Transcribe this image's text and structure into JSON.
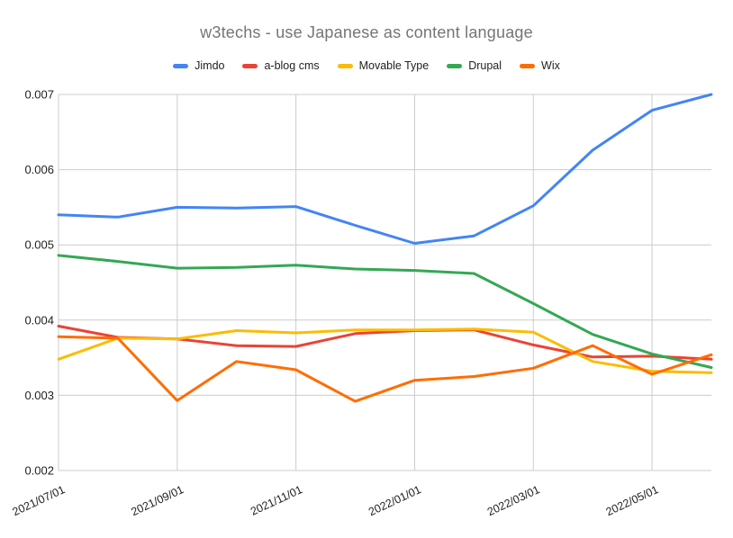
{
  "page": {
    "background": "#ffffff"
  },
  "chart_data": {
    "type": "line",
    "title": "w3techs - use Japanese as content language",
    "title_color": "#757575",
    "xlabel": "",
    "ylabel": "",
    "x": [
      "2021/07/01",
      "2021/08/01",
      "2021/09/01",
      "2021/10/01",
      "2021/11/01",
      "2021/12/01",
      "2022/01/01",
      "2022/02/01",
      "2022/03/01",
      "2022/04/01",
      "2022/05/01",
      "2022/06/01"
    ],
    "x_tick_labels": [
      "2021/07/01",
      "2021/09/01",
      "2021/11/01",
      "2022/01/01",
      "2022/03/01",
      "2022/05/01"
    ],
    "y_ticks": [
      0.002,
      0.003,
      0.004,
      0.005,
      0.006,
      0.007
    ],
    "y_tick_labels": [
      "0.002",
      "0.003",
      "0.004",
      "0.005",
      "0.006",
      "0.007"
    ],
    "ylim": [
      0.002,
      0.007
    ],
    "grid": true,
    "legend_position": "top",
    "gridline_color": "#cccccc",
    "axis_label_color": "#1f1f1f",
    "series": [
      {
        "name": "Jimdo",
        "color": "#4285F4",
        "values": [
          0.0054,
          0.00537,
          0.0055,
          0.00549,
          0.00551,
          0.00526,
          0.00502,
          0.00512,
          0.00552,
          0.00626,
          0.00679,
          0.007
        ]
      },
      {
        "name": "a-blog cms",
        "color": "#EA4335",
        "values": [
          0.00392,
          0.00377,
          0.00375,
          0.00366,
          0.00365,
          0.00382,
          0.00386,
          0.00387,
          0.00367,
          0.00351,
          0.00352,
          0.00348
        ]
      },
      {
        "name": "Movable Type",
        "color": "#FBBC04",
        "values": [
          0.00348,
          0.00376,
          0.00375,
          0.00386,
          0.00383,
          0.00387,
          0.00387,
          0.00388,
          0.00384,
          0.00345,
          0.00332,
          0.0033
        ]
      },
      {
        "name": "Drupal",
        "color": "#34A853",
        "values": [
          0.00486,
          0.00478,
          0.00469,
          0.0047,
          0.00473,
          0.00468,
          0.00466,
          0.00462,
          0.00422,
          0.00381,
          0.00355,
          0.00337
        ]
      },
      {
        "name": "Wix",
        "color": "#FF6D01",
        "values": [
          0.00378,
          0.00376,
          0.00293,
          0.00345,
          0.00334,
          0.00292,
          0.0032,
          0.00325,
          0.00336,
          0.00366,
          0.00328,
          0.00354
        ]
      }
    ]
  }
}
